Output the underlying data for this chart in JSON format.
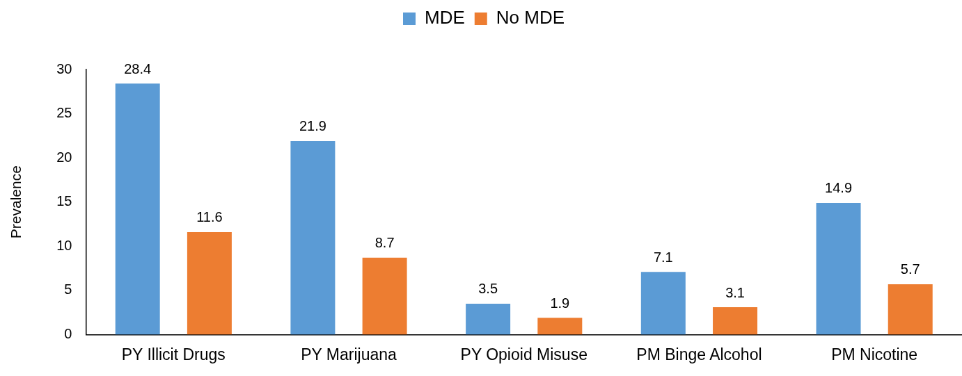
{
  "chart_data": {
    "type": "bar",
    "ylabel": "Prevalence",
    "categories": [
      "PY Illicit Drugs",
      "PY Marijuana",
      "PY Opioid Misuse",
      "PM Binge Alcohol",
      "PM Nicotine"
    ],
    "series": [
      {
        "name": "MDE",
        "color": "#5b9bd5",
        "values": [
          28.4,
          21.9,
          3.5,
          7.1,
          14.9
        ]
      },
      {
        "name": "No MDE",
        "color": "#ed7d31",
        "values": [
          11.6,
          8.7,
          1.9,
          3.1,
          5.7
        ]
      }
    ],
    "ylim": [
      0,
      30
    ],
    "yticks": [
      0,
      5,
      10,
      15,
      20,
      25,
      30
    ],
    "grid": false,
    "legend": "top",
    "data_labels": true
  }
}
